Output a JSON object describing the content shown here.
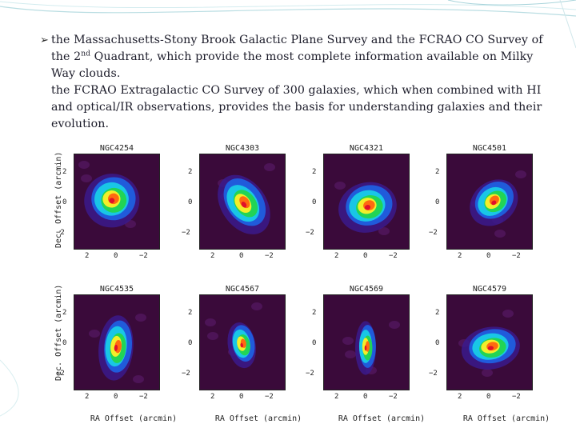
{
  "slide": {
    "bullet_1_pre": "the Massachusetts-Stony Brook Galactic Plane Survey and the FCRAO CO Survey of the 2",
    "bullet_1_sup": "nd",
    "bullet_1_post": " Quadrant, which provide the most complete information available on Milky Way clouds.",
    "bullet_2": "the FCRAO Extragalactic CO Survey of 300 galaxies, which when combined with HI and optical/IR observations, provides the basis for understanding galaxies and their evolution."
  },
  "figure": {
    "y_axis_label": "Dec. Offset (arcmin)",
    "x_axis_label": "RA Offset (arcmin)",
    "y_ticks": [
      "2",
      "0",
      "−2"
    ],
    "x_ticks": [
      "2",
      "0",
      "−2"
    ],
    "galaxies": [
      {
        "name": "NGC4254"
      },
      {
        "name": "NGC4303"
      },
      {
        "name": "NGC4321"
      },
      {
        "name": "NGC4501"
      },
      {
        "name": "NGC4535"
      },
      {
        "name": "NGC4567"
      },
      {
        "name": "NGC4569"
      },
      {
        "name": "NGC4579"
      }
    ]
  },
  "colors": {
    "map_background": "#3a0a3a",
    "accent_teal": "#7ec8cf",
    "text": "#1c1c2a"
  }
}
